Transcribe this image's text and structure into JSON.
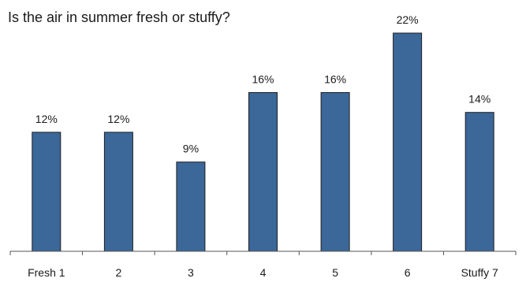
{
  "chart_data": {
    "type": "bar",
    "title": "Is the air in summer fresh or stuffy?",
    "categories": [
      "Fresh 1",
      "2",
      "3",
      "4",
      "5",
      "6",
      "Stuffy 7"
    ],
    "values": [
      12,
      12,
      9,
      16,
      16,
      22,
      14
    ],
    "value_labels": [
      "12%",
      "12%",
      "9%",
      "16%",
      "16%",
      "22%",
      "14%"
    ],
    "xlabel": "",
    "ylabel": "",
    "ylim": [
      0,
      22
    ],
    "grid": false,
    "legend": "none",
    "bar_color": "#3b6799",
    "bar_edge_color": "#1f1f1f"
  }
}
